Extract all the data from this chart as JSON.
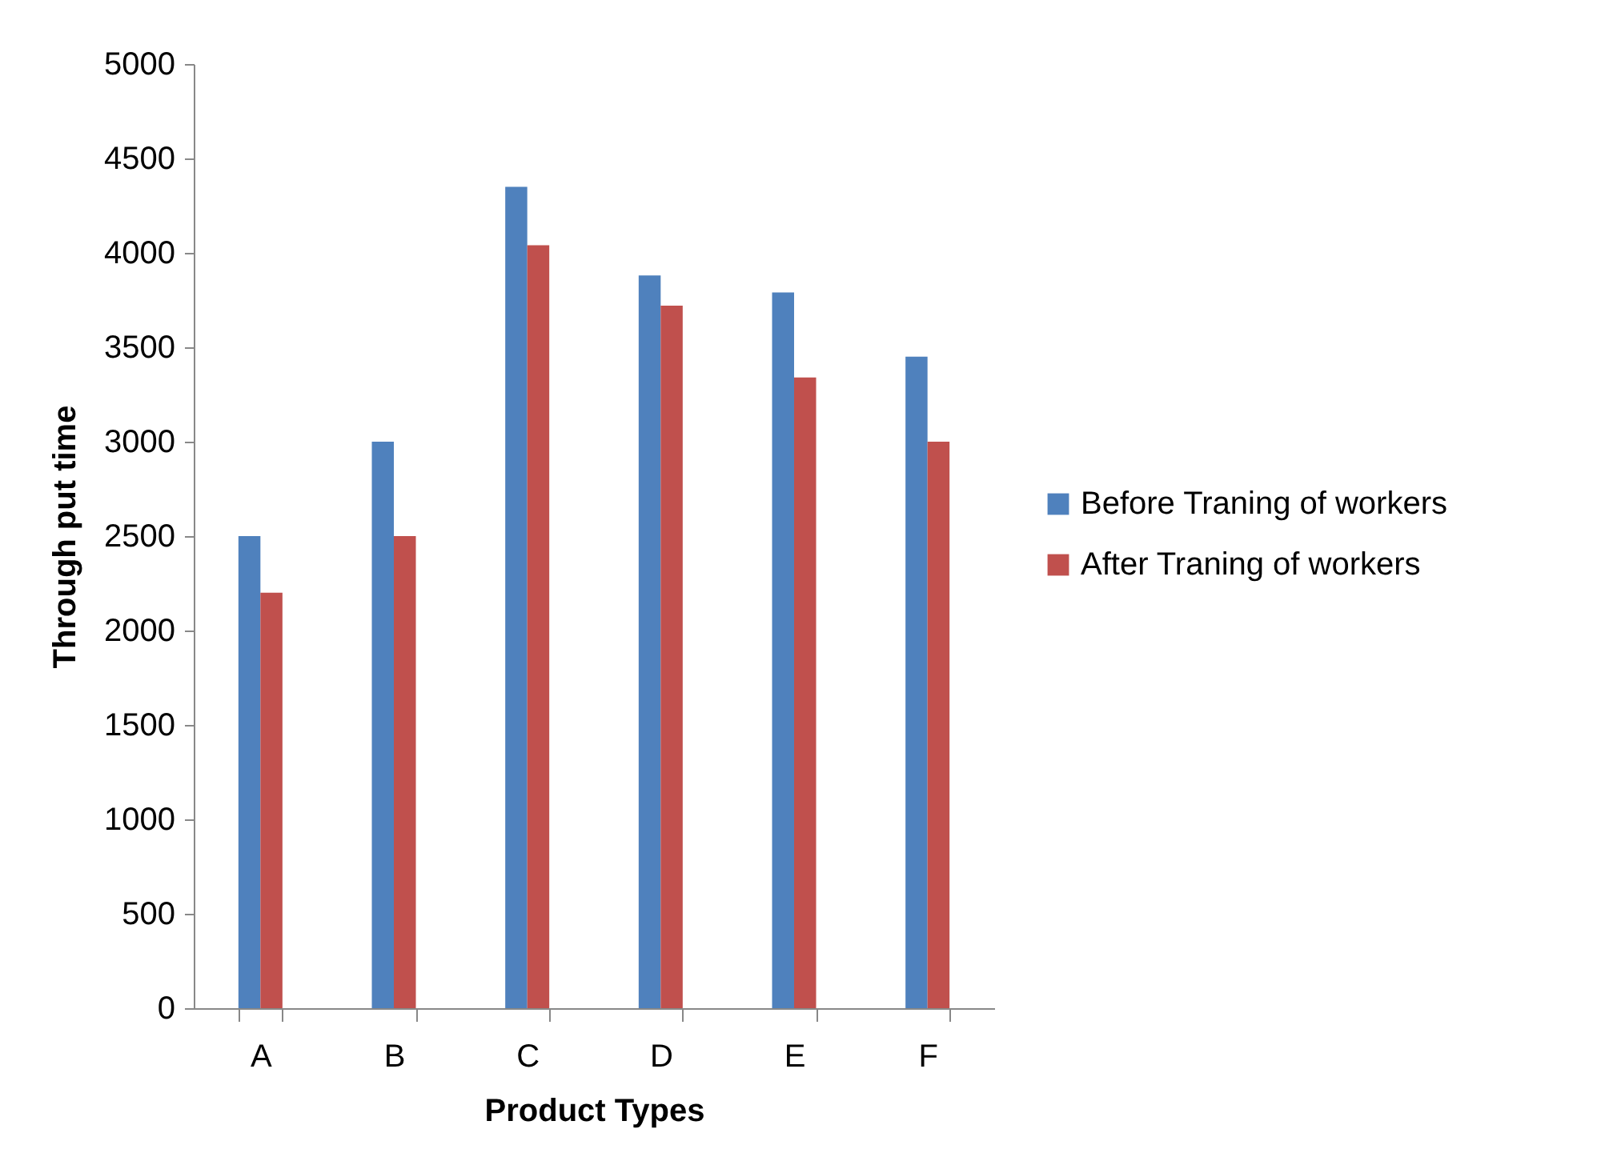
{
  "chart_data": {
    "type": "bar",
    "xlabel": "Product Types",
    "ylabel": "Through put time",
    "categories": [
      "A",
      "B",
      "C",
      "D",
      "E",
      "F"
    ],
    "series": [
      {
        "name": "Before Traning of workers",
        "color": "#4f81bd",
        "values": [
          2500,
          3000,
          4350,
          3880,
          3790,
          3450
        ]
      },
      {
        "name": "After Traning of workers",
        "color": "#c0504d",
        "values": [
          2200,
          2500,
          4040,
          3720,
          3340,
          3000
        ]
      }
    ],
    "ylim": [
      0,
      5000
    ],
    "yticks": [
      0,
      500,
      1000,
      1500,
      2000,
      2500,
      3000,
      3500,
      4000,
      4500,
      5000
    ],
    "grid": false,
    "legend": "right"
  }
}
